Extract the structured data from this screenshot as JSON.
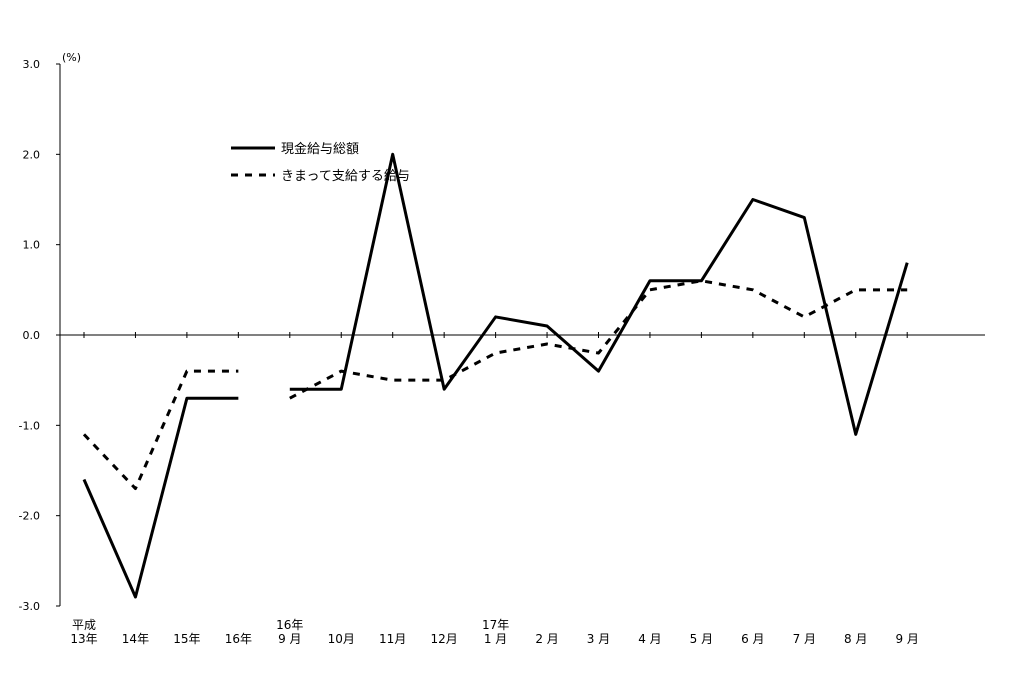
{
  "chart_data": {
    "type": "line",
    "unit_label": "(%)",
    "ylim": [
      -3.0,
      3.0
    ],
    "y_ticks": [
      "3.0",
      "2.0",
      "1.0",
      "0.0",
      "-1.0",
      "-2.0",
      "-3.0"
    ],
    "y_tick_values": [
      3.0,
      2.0,
      1.0,
      0.0,
      -1.0,
      -2.0,
      -3.0
    ],
    "grid": false,
    "legend_position": "top-left",
    "categories": [
      {
        "lines": [
          "平成",
          "13年"
        ]
      },
      {
        "lines": [
          "14年"
        ]
      },
      {
        "lines": [
          "15年"
        ]
      },
      {
        "lines": [
          "16年"
        ]
      },
      {
        "lines": [
          "16年",
          "9 月"
        ]
      },
      {
        "lines": [
          "10月"
        ]
      },
      {
        "lines": [
          "11月"
        ]
      },
      {
        "lines": [
          "12月"
        ]
      },
      {
        "lines": [
          "17年",
          "1 月"
        ]
      },
      {
        "lines": [
          "2 月"
        ]
      },
      {
        "lines": [
          "3 月"
        ]
      },
      {
        "lines": [
          "4 月"
        ]
      },
      {
        "lines": [
          "5 月"
        ]
      },
      {
        "lines": [
          "6 月"
        ]
      },
      {
        "lines": [
          "7 月"
        ]
      },
      {
        "lines": [
          "8 月"
        ]
      },
      {
        "lines": [
          "9 月"
        ]
      }
    ],
    "series": [
      {
        "name": "現金給与総額",
        "style": "solid",
        "color": "#000000",
        "segments": [
          {
            "start": 0,
            "values": [
              -1.6,
              -2.9,
              -0.7,
              -0.7
            ]
          },
          {
            "start": 4,
            "values": [
              -0.6,
              -0.6,
              2.0,
              -0.6,
              0.2,
              0.1,
              -0.4,
              0.6,
              0.6,
              1.5,
              1.3,
              -1.1,
              0.8
            ]
          }
        ]
      },
      {
        "name": "きまって支給する給与",
        "style": "dashed",
        "color": "#000000",
        "segments": [
          {
            "start": 0,
            "values": [
              -1.1,
              -1.7,
              -0.4,
              -0.4
            ]
          },
          {
            "start": 4,
            "values": [
              -0.7,
              -0.4,
              -0.5,
              -0.5,
              -0.2,
              -0.1,
              -0.2,
              0.5,
              0.6,
              0.5,
              0.2,
              0.5,
              0.5
            ]
          }
        ]
      }
    ]
  }
}
